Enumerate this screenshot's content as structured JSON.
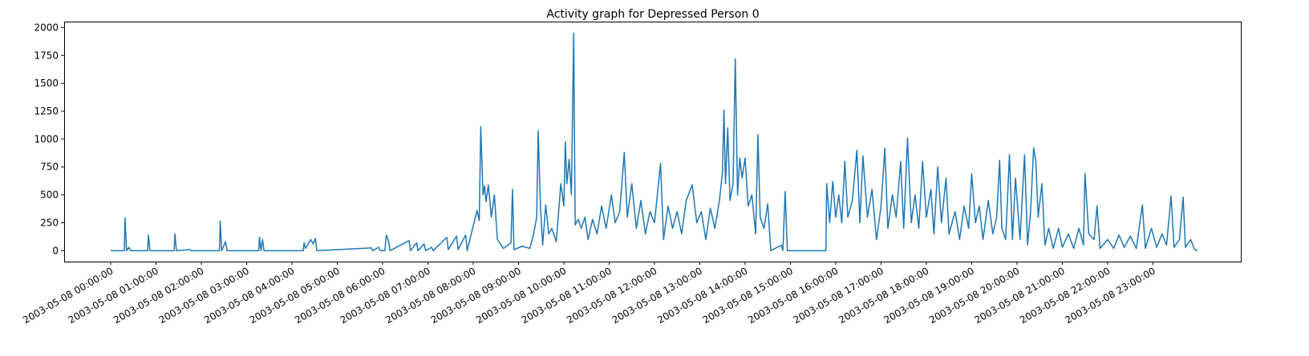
{
  "chart_data": {
    "type": "line",
    "title": "Activity graph for Depressed Person 0",
    "color": "#1f77b4",
    "x": [
      "2003-05-08 00:00:00",
      "2003-05-08 00:18:00",
      "2003-05-08 00:19:00",
      "2003-05-08 00:21:00",
      "2003-05-08 00:24:00",
      "2003-05-08 00:26:00",
      "2003-05-08 00:49:00",
      "2003-05-08 00:50:00",
      "2003-05-08 00:52:00",
      "2003-05-08 01:24:00",
      "2003-05-08 01:25:00",
      "2003-05-08 01:27:00",
      "2003-05-08 01:45:00",
      "2003-05-08 01:47:00",
      "2003-05-08 02:24:00",
      "2003-05-08 02:25:00",
      "2003-05-08 02:27:00",
      "2003-05-08 02:32:00",
      "2003-05-08 02:34:00",
      "2003-05-08 03:16:00",
      "2003-05-08 03:17:00",
      "2003-05-08 03:19:00",
      "2003-05-08 03:21:00",
      "2003-05-08 03:23:00",
      "2003-05-08 04:15:00",
      "2003-05-08 04:16:00",
      "2003-05-08 04:18:00",
      "2003-05-08 04:25:00",
      "2003-05-08 04:28:00",
      "2003-05-08 04:31:00",
      "2003-05-08 04:33:00",
      "2003-05-08 05:45:00",
      "2003-05-08 05:47:00",
      "2003-05-08 05:55:00",
      "2003-05-08 05:57:00",
      "2003-05-08 06:03:00",
      "2003-05-08 06:05:00",
      "2003-05-08 06:08:00",
      "2003-05-08 06:10:00",
      "2003-05-08 06:35:00",
      "2003-05-08 06:37:00",
      "2003-05-08 06:45:00",
      "2003-05-08 06:47:00",
      "2003-05-08 06:55:00",
      "2003-05-08 06:57:00",
      "2003-05-08 07:05:00",
      "2003-05-08 07:07:00",
      "2003-05-08 07:25:00",
      "2003-05-08 07:27:00",
      "2003-05-08 07:38:00",
      "2003-05-08 07:40:00",
      "2003-05-08 07:50:00",
      "2003-05-08 07:52:00",
      "2003-05-08 08:05:00",
      "2003-05-08 08:08:00",
      "2003-05-08 08:10:00",
      "2003-05-08 08:13:00",
      "2003-05-08 08:15:00",
      "2003-05-08 08:17:00",
      "2003-05-08 08:20:00",
      "2003-05-08 08:24:00",
      "2003-05-08 08:28:00",
      "2003-05-08 08:32:00",
      "2003-05-08 08:40:00",
      "2003-05-08 08:50:00",
      "2003-05-08 08:52:00",
      "2003-05-08 08:54:00",
      "2003-05-08 09:05:00",
      "2003-05-08 09:15:00",
      "2003-05-08 09:20:00",
      "2003-05-08 09:24:00",
      "2003-05-08 09:26:00",
      "2003-05-08 09:29:00",
      "2003-05-08 09:32:00",
      "2003-05-08 09:36:00",
      "2003-05-08 09:40:00",
      "2003-05-08 09:44:00",
      "2003-05-08 09:50:00",
      "2003-05-08 09:56:00",
      "2003-05-08 10:00:00",
      "2003-05-08 10:02:00",
      "2003-05-08 10:04:00",
      "2003-05-08 10:07:00",
      "2003-05-08 10:10:00",
      "2003-05-08 10:13:00",
      "2003-05-08 10:15:00",
      "2003-05-08 10:19:00",
      "2003-05-08 10:23:00",
      "2003-05-08 10:28:00",
      "2003-05-08 10:32:00",
      "2003-05-08 10:38:00",
      "2003-05-08 10:44:00",
      "2003-05-08 10:50:00",
      "2003-05-08 10:56:00",
      "2003-05-08 11:03:00",
      "2003-05-08 11:08:00",
      "2003-05-08 11:14:00",
      "2003-05-08 11:20:00",
      "2003-05-08 11:24:00",
      "2003-05-08 11:30:00",
      "2003-05-08 11:36:00",
      "2003-05-08 11:42:00",
      "2003-05-08 11:48:00",
      "2003-05-08 11:54:00",
      "2003-05-08 12:00:00",
      "2003-05-08 12:08:00",
      "2003-05-08 12:12:00",
      "2003-05-08 12:18:00",
      "2003-05-08 12:24:00",
      "2003-05-08 12:30:00",
      "2003-05-08 12:36:00",
      "2003-05-08 12:42:00",
      "2003-05-08 12:50:00",
      "2003-05-08 12:56:00",
      "2003-05-08 13:02:00",
      "2003-05-08 13:08:00",
      "2003-05-08 13:14:00",
      "2003-05-08 13:20:00",
      "2003-05-08 13:26:00",
      "2003-05-08 13:30:00",
      "2003-05-08 13:32:00",
      "2003-05-08 13:34:00",
      "2003-05-08 13:37:00",
      "2003-05-08 13:40:00",
      "2003-05-08 13:44:00",
      "2003-05-08 13:47:00",
      "2003-05-08 13:50:00",
      "2003-05-08 13:53:00",
      "2003-05-08 13:56:00",
      "2003-05-08 14:00:00",
      "2003-05-08 14:04:00",
      "2003-05-08 14:09:00",
      "2003-05-08 14:14:00",
      "2003-05-08 14:17:00",
      "2003-05-08 14:20:00",
      "2003-05-08 14:25:00",
      "2003-05-08 14:30:00",
      "2003-05-08 14:34:00",
      "2003-05-08 14:48:00",
      "2003-05-08 14:50:00",
      "2003-05-08 14:53:00",
      "2003-05-08 14:56:00",
      "2003-05-08 15:47:00",
      "2003-05-08 15:48:00",
      "2003-05-08 15:52:00",
      "2003-05-08 15:56:00",
      "2003-05-08 16:00:00",
      "2003-05-08 16:04:00",
      "2003-05-08 16:08:00",
      "2003-05-08 16:12:00",
      "2003-05-08 16:16:00",
      "2003-05-08 16:22:00",
      "2003-05-08 16:28:00",
      "2003-05-08 16:32:00",
      "2003-05-08 16:36:00",
      "2003-05-08 16:42:00",
      "2003-05-08 16:48:00",
      "2003-05-08 16:54:00",
      "2003-05-08 17:00:00",
      "2003-05-08 17:05:00",
      "2003-05-08 17:09:00",
      "2003-05-08 17:15:00",
      "2003-05-08 17:20:00",
      "2003-05-08 17:26:00",
      "2003-05-08 17:30:00",
      "2003-05-08 17:35:00",
      "2003-05-08 17:40:00",
      "2003-05-08 17:45:00",
      "2003-05-08 17:50:00",
      "2003-05-08 17:55:00",
      "2003-05-08 18:00:00",
      "2003-05-08 18:06:00",
      "2003-05-08 18:10:00",
      "2003-05-08 18:15:00",
      "2003-05-08 18:20:00",
      "2003-05-08 18:26:00",
      "2003-05-08 18:30:00",
      "2003-05-08 18:38:00",
      "2003-05-08 18:44:00",
      "2003-05-08 18:50:00",
      "2003-05-08 18:56:00",
      "2003-05-08 19:00:00",
      "2003-05-08 19:05:00",
      "2003-05-08 19:10:00",
      "2003-05-08 19:15:00",
      "2003-05-08 19:22:00",
      "2003-05-08 19:28:00",
      "2003-05-08 19:33:00",
      "2003-05-08 19:37:00",
      "2003-05-08 19:40:00",
      "2003-05-08 19:45:00",
      "2003-05-08 19:50:00",
      "2003-05-08 19:54:00",
      "2003-05-08 19:58:00",
      "2003-05-08 20:04:00",
      "2003-05-08 20:10:00",
      "2003-05-08 20:14:00",
      "2003-05-08 20:18:00",
      "2003-05-08 20:22:00",
      "2003-05-08 20:25:00",
      "2003-05-08 20:28:00",
      "2003-05-08 20:33:00",
      "2003-05-08 20:37:00",
      "2003-05-08 20:42:00",
      "2003-05-08 20:48:00",
      "2003-05-08 20:55:00",
      "2003-05-08 21:00:00",
      "2003-05-08 21:08:00",
      "2003-05-08 21:15:00",
      "2003-05-08 21:22:00",
      "2003-05-08 21:28:00",
      "2003-05-08 21:30:00",
      "2003-05-08 21:35:00",
      "2003-05-08 21:42:00",
      "2003-05-08 21:46:00",
      "2003-05-08 21:50:00",
      "2003-05-08 22:00:00",
      "2003-05-08 22:08:00",
      "2003-05-08 22:15:00",
      "2003-05-08 22:22:00",
      "2003-05-08 22:30:00",
      "2003-05-08 22:38:00",
      "2003-05-08 22:46:00",
      "2003-05-08 22:50:00",
      "2003-05-08 22:58:00",
      "2003-05-08 23:05:00",
      "2003-05-08 23:12:00",
      "2003-05-08 23:18:00",
      "2003-05-08 23:24:00",
      "2003-05-08 23:28:00",
      "2003-05-08 23:35:00",
      "2003-05-08 23:40:00",
      "2003-05-08 23:43:00",
      "2003-05-08 23:50:00",
      "2003-05-08 23:55:00",
      "2003-05-08 23:59:00"
    ],
    "values": [
      0,
      0,
      295,
      0,
      30,
      0,
      0,
      140,
      0,
      0,
      150,
      0,
      10,
      0,
      0,
      265,
      0,
      80,
      0,
      0,
      120,
      0,
      100,
      0,
      0,
      70,
      20,
      100,
      60,
      110,
      0,
      25,
      0,
      30,
      0,
      0,
      140,
      80,
      0,
      90,
      0,
      70,
      0,
      60,
      0,
      30,
      0,
      120,
      10,
      130,
      10,
      140,
      0,
      360,
      270,
      1110,
      500,
      580,
      440,
      590,
      300,
      500,
      100,
      20,
      70,
      550,
      10,
      40,
      20,
      150,
      300,
      1075,
      400,
      50,
      410,
      150,
      200,
      80,
      600,
      400,
      975,
      600,
      820,
      500,
      1950,
      230,
      280,
      200,
      300,
      100,
      280,
      150,
      400,
      200,
      500,
      250,
      350,
      880,
      300,
      600,
      200,
      450,
      150,
      350,
      250,
      780,
      100,
      400,
      200,
      350,
      150,
      450,
      590,
      250,
      350,
      100,
      380,
      200,
      450,
      700,
      1260,
      600,
      1100,
      450,
      600,
      1720,
      500,
      830,
      650,
      830,
      400,
      500,
      150,
      1040,
      300,
      200,
      420,
      0,
      50,
      0,
      530,
      0,
      0,
      600,
      250,
      620,
      300,
      500,
      250,
      800,
      300,
      450,
      900,
      250,
      850,
      300,
      550,
      100,
      400,
      920,
      200,
      500,
      300,
      800,
      200,
      1010,
      250,
      500,
      200,
      800,
      300,
      550,
      150,
      750,
      250,
      650,
      150,
      350,
      100,
      400,
      200,
      690,
      250,
      400,
      100,
      450,
      150,
      300,
      810,
      200,
      100,
      860,
      100,
      650,
      100,
      860,
      50,
      350,
      920,
      800,
      300,
      600,
      50,
      200,
      20,
      200,
      30,
      150,
      20,
      200,
      50,
      690,
      150,
      100,
      400,
      20,
      100,
      20,
      140,
      30,
      130,
      20,
      410,
      20,
      200,
      30,
      150,
      50,
      490,
      30,
      100,
      480,
      30,
      100,
      10,
      0
    ],
    "xlim": [
      "2003-05-08 00:00:00",
      "2003-05-08 23:59:00"
    ],
    "xticks": [
      "2003-05-08 00:00:00",
      "2003-05-08 01:00:00",
      "2003-05-08 02:00:00",
      "2003-05-08 03:00:00",
      "2003-05-08 04:00:00",
      "2003-05-08 05:00:00",
      "2003-05-08 06:00:00",
      "2003-05-08 07:00:00",
      "2003-05-08 08:00:00",
      "2003-05-08 09:00:00",
      "2003-05-08 10:00:00",
      "2003-05-08 11:00:00",
      "2003-05-08 12:00:00",
      "2003-05-08 13:00:00",
      "2003-05-08 14:00:00",
      "2003-05-08 15:00:00",
      "2003-05-08 16:00:00",
      "2003-05-08 17:00:00",
      "2003-05-08 18:00:00",
      "2003-05-08 19:00:00",
      "2003-05-08 20:00:00",
      "2003-05-08 21:00:00",
      "2003-05-08 22:00:00",
      "2003-05-08 23:00:00"
    ],
    "ylim": [
      -98,
      2053
    ],
    "yticks": [
      0,
      250,
      500,
      750,
      1000,
      1250,
      1500,
      1750,
      2000
    ]
  }
}
